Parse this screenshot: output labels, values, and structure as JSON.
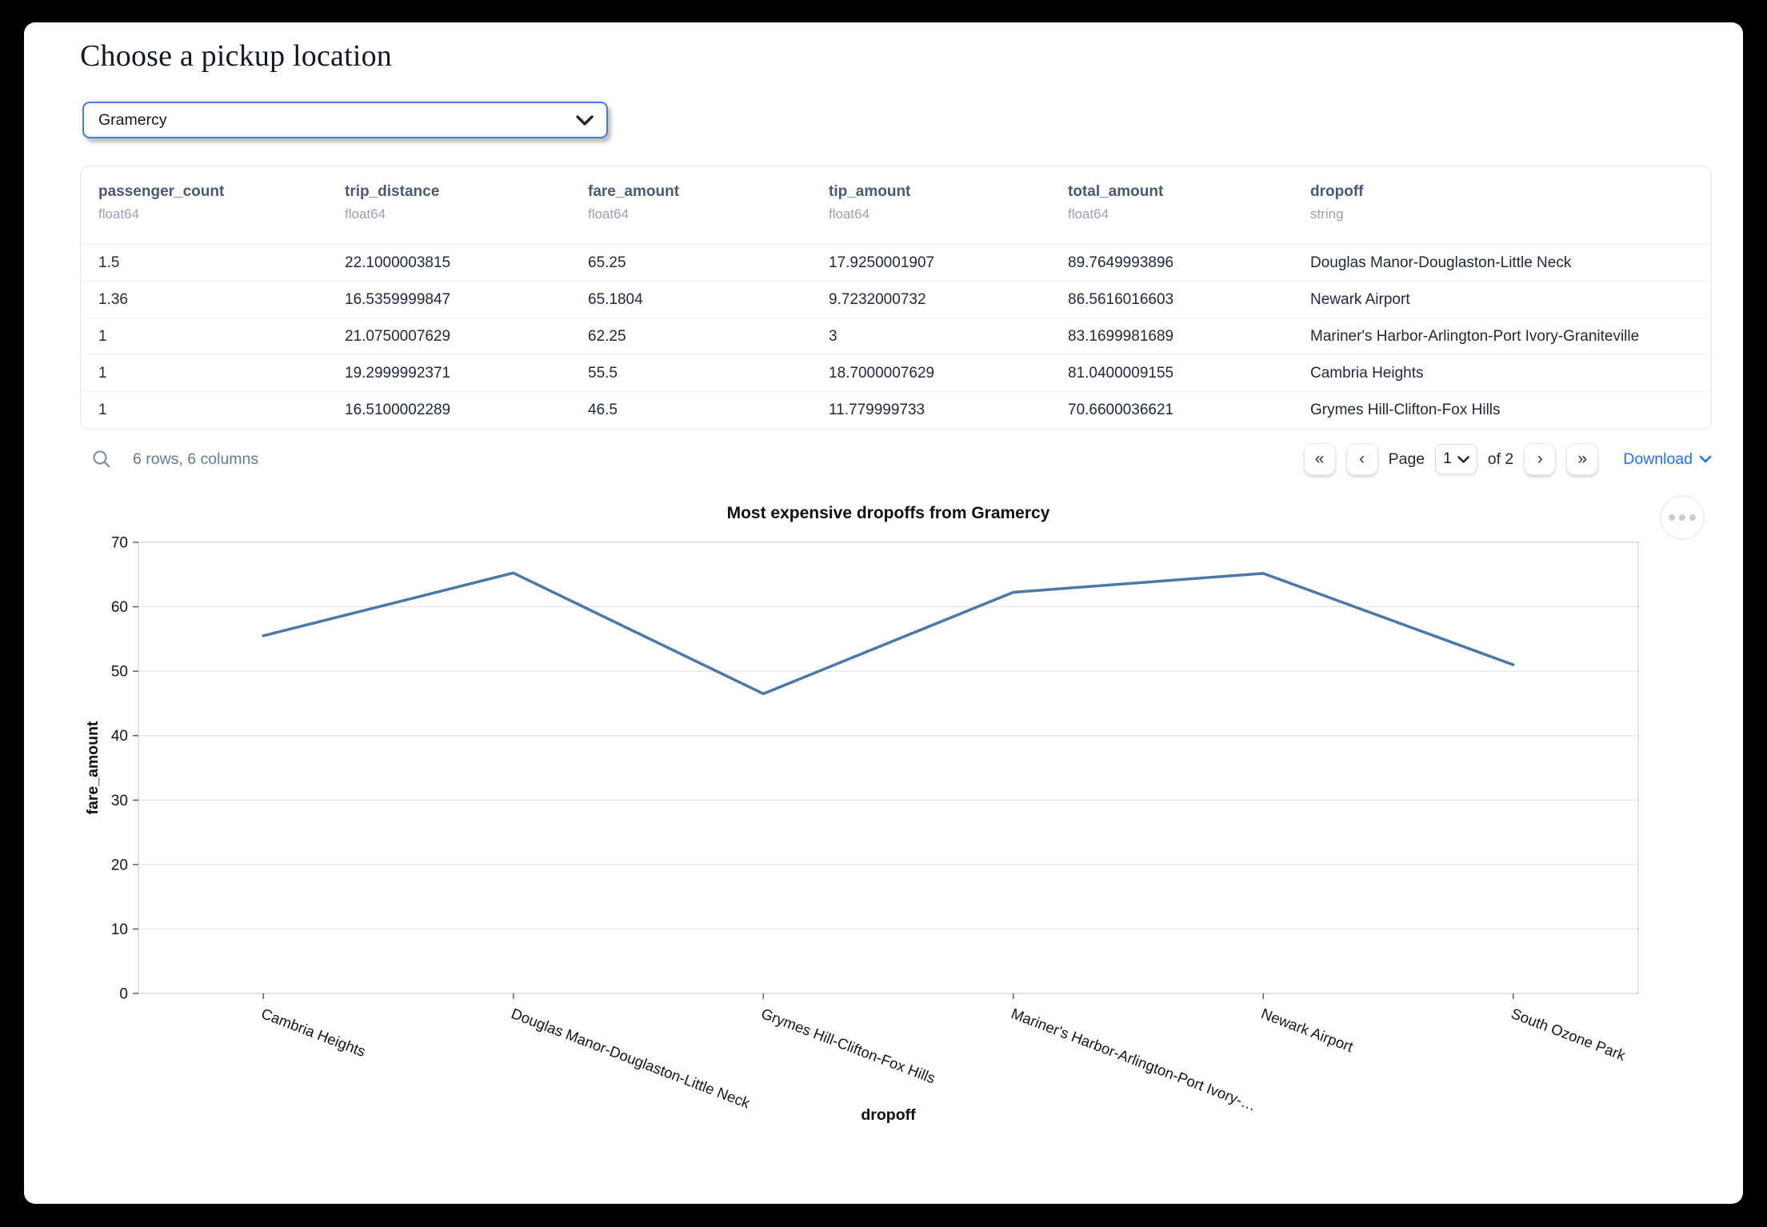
{
  "page": {
    "title": "Choose a pickup location"
  },
  "pickup_select": {
    "value": "Gramercy"
  },
  "table": {
    "columns": [
      {
        "name": "passenger_count",
        "type": "float64"
      },
      {
        "name": "trip_distance",
        "type": "float64"
      },
      {
        "name": "fare_amount",
        "type": "float64"
      },
      {
        "name": "tip_amount",
        "type": "float64"
      },
      {
        "name": "total_amount",
        "type": "float64"
      },
      {
        "name": "dropoff",
        "type": "string"
      }
    ],
    "rows": [
      [
        "1.5",
        "22.1000003815",
        "65.25",
        "17.9250001907",
        "89.7649993896",
        "Douglas Manor-Douglaston-Little Neck"
      ],
      [
        "1.36",
        "16.5359999847",
        "65.1804",
        "9.7232000732",
        "86.5616016603",
        "Newark Airport"
      ],
      [
        "1",
        "21.0750007629",
        "62.25",
        "3",
        "83.1699981689",
        "Mariner's Harbor-Arlington-Port Ivory-Graniteville"
      ],
      [
        "1",
        "19.2999992371",
        "55.5",
        "18.7000007629",
        "81.0400009155",
        "Cambria Heights"
      ],
      [
        "1",
        "16.5100002289",
        "46.5",
        "11.779999733",
        "70.6600036621",
        "Grymes Hill-Clifton-Fox Hills"
      ]
    ],
    "status": "6 rows, 6 columns",
    "pagination": {
      "first_label": "«",
      "prev_label": "‹",
      "page_label": "Page",
      "page_value": "1",
      "of_label": "of 2",
      "next_label": "›",
      "last_label": "»",
      "download_label": "Download"
    }
  },
  "chart_data": {
    "type": "line",
    "title": "Most expensive dropoffs from Gramercy",
    "xlabel": "dropoff",
    "ylabel": "fare_amount",
    "categories": [
      "Cambria Heights",
      "Douglas Manor-Douglaston-Little Neck",
      "Grymes Hill-Clifton-Fox Hills",
      "Mariner's Harbor-Arlington-Port Ivory-…",
      "Newark Airport",
      "South Ozone Park"
    ],
    "values": [
      55.5,
      65.25,
      46.5,
      62.25,
      65.1804,
      51
    ],
    "ylim": [
      0,
      70
    ],
    "yticks": [
      0,
      10,
      20,
      30,
      40,
      50,
      60,
      70
    ],
    "grid": true,
    "legend": "none",
    "line_color": "#4c78a8",
    "grid_color": "#dedede",
    "border_color": "#d4d4d4",
    "label_color": "#161616"
  }
}
